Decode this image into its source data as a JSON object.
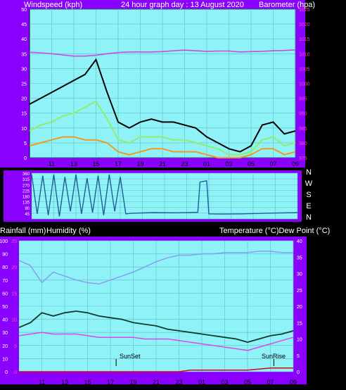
{
  "colors": {
    "frame": "#8a00ff",
    "plot_bg": "#8ef2f7",
    "grid": "#5fbfc4",
    "axis_text": "#ffffff",
    "right_axis_text": "#ff44cc",
    "gust": "#000000",
    "avg_wind": "#8fef6a",
    "wind_min": "#f39a1f",
    "barometer": "#d048e6",
    "direction": "#1f5f9a",
    "humidity": "#8a9cf0",
    "temperature": "#0f3b2e",
    "dewpoint": "#d84be8",
    "rainfall": "#e00000"
  },
  "chart_data": [
    {
      "id": "wind_baro",
      "type": "line",
      "title": "24 hour graph day : 13 August 2020",
      "left_axis_label": "Windspeed (kph)",
      "right_axis_label": "Barometer (hpa)",
      "x_ticks": [
        "11",
        "13",
        "15",
        "17",
        "19",
        "21",
        "23",
        "01",
        "03",
        "05",
        "07",
        "09"
      ],
      "left_ticks": [
        0,
        5,
        10,
        15,
        20,
        25,
        30,
        35,
        40,
        45,
        50
      ],
      "right_ticks": [
        975,
        980,
        985,
        990,
        995,
        1000,
        1005,
        1010,
        1015,
        1020,
        1025
      ],
      "ylim_left": [
        0,
        50
      ],
      "ylim_right": [
        975,
        1025
      ],
      "x_hours": [
        9,
        10,
        11,
        12,
        13,
        14,
        15,
        16,
        17,
        18,
        19,
        20,
        21,
        22,
        23,
        24,
        25,
        26,
        27,
        28,
        29,
        30,
        31,
        32,
        33
      ],
      "series": [
        {
          "key": "gust",
          "values": [
            18,
            20,
            22,
            24,
            26,
            28,
            33,
            22,
            12,
            10,
            12,
            13,
            12,
            12,
            11,
            10,
            7,
            5,
            3,
            2,
            4,
            11,
            12,
            8,
            9
          ]
        },
        {
          "key": "avg",
          "values": [
            9,
            11,
            12,
            14,
            15,
            17,
            19,
            13,
            6,
            5,
            7,
            7,
            7,
            6,
            6,
            5,
            4,
            3,
            1,
            1,
            2,
            6,
            7,
            4,
            5
          ]
        },
        {
          "key": "min",
          "values": [
            4,
            5,
            6,
            7,
            7,
            6,
            6,
            5,
            2,
            1,
            2,
            3,
            3,
            2,
            2,
            2,
            1,
            0,
            0,
            0,
            1,
            3,
            3,
            1,
            2
          ]
        },
        {
          "key": "barometer",
          "values": [
            1010.5,
            1010.3,
            1010.0,
            1009.6,
            1009.2,
            1009.2,
            1009.5,
            1010.0,
            1010.4,
            1010.6,
            1010.6,
            1010.6,
            1010.7,
            1011.0,
            1011.2,
            1011.0,
            1010.8,
            1010.9,
            1010.9,
            1010.6,
            1010.7,
            1010.8,
            1011.0,
            1011.1,
            1011.3
          ]
        }
      ]
    },
    {
      "id": "direction",
      "type": "line",
      "y_ticks": [
        0,
        45,
        90,
        135,
        180,
        225,
        270,
        315,
        360
      ],
      "dir_labels": [
        "N",
        "W",
        "S",
        "E",
        "N"
      ],
      "ylim": [
        0,
        360
      ],
      "x_hours": [
        9,
        9.5,
        10,
        10.5,
        11,
        11.5,
        12,
        12.5,
        13,
        13.5,
        14,
        14.5,
        15,
        15.5,
        16,
        16.5,
        17,
        17.5,
        18,
        20,
        22,
        24,
        24.2,
        24.8,
        25,
        26,
        28,
        30,
        32,
        33
      ],
      "values": [
        350,
        40,
        340,
        30,
        350,
        20,
        330,
        60,
        350,
        40,
        320,
        50,
        340,
        30,
        350,
        60,
        330,
        40,
        45,
        50,
        48,
        52,
        290,
        300,
        40,
        38,
        40,
        45,
        48,
        50
      ]
    },
    {
      "id": "temp_hum_rain",
      "type": "line",
      "left_axis_label": "Rainfall (mm)",
      "left_axis_label2": "Humidity (%)",
      "right_axis_label": "Temperature (°C)Dew Point (°C)",
      "x_ticks": [
        "11",
        "13",
        "15",
        "17",
        "19",
        "21",
        "23",
        "01",
        "03",
        "05",
        "07",
        "09"
      ],
      "humidity_ticks": [
        0,
        10,
        20,
        30,
        40,
        50,
        60,
        70,
        80,
        90,
        100
      ],
      "rain_ticks": [
        0,
        5,
        10,
        15,
        20,
        25
      ],
      "right_ticks": [
        0,
        5,
        10,
        15,
        20,
        25,
        30,
        35,
        40
      ],
      "ylim_left": [
        0,
        100
      ],
      "ylim_right": [
        0,
        40
      ],
      "annotations": {
        "sunset": "SunSet",
        "sunrise": "SunRise"
      },
      "x_hours": [
        9,
        10,
        11,
        12,
        13,
        14,
        15,
        16,
        17,
        18,
        19,
        20,
        21,
        22,
        23,
        24,
        25,
        26,
        27,
        28,
        29,
        30,
        31,
        32,
        33
      ],
      "series": [
        {
          "key": "humidity",
          "values": [
            85,
            81,
            68,
            76,
            73,
            70,
            68,
            67,
            70,
            73,
            76,
            80,
            84,
            87,
            89,
            89,
            90,
            90,
            91,
            91,
            91,
            92,
            92,
            91,
            91
          ]
        },
        {
          "key": "temperature",
          "values": [
            13.5,
            15,
            18,
            17,
            18,
            18.5,
            18,
            17,
            16.5,
            16,
            15,
            14.5,
            14,
            13,
            12.5,
            12,
            11.5,
            11,
            10.5,
            10,
            9,
            10,
            11,
            11.5,
            12.5
          ]
        },
        {
          "key": "dewpoint",
          "values": [
            11,
            11.5,
            12,
            11.5,
            11.5,
            11.5,
            11,
            10.5,
            10.5,
            10.5,
            10.5,
            10,
            10,
            10,
            9.5,
            9,
            8.5,
            8,
            7.5,
            7,
            6.5,
            7.5,
            8.5,
            9.5,
            10.5
          ]
        },
        {
          "key": "rainfall",
          "values": [
            0,
            0,
            0,
            0,
            0,
            0,
            0,
            0,
            0,
            0,
            0,
            0,
            0,
            0,
            0,
            0.3,
            0.3,
            0.3,
            0.3,
            0.3,
            0.3,
            0.5,
            0.7,
            0.7,
            0.7
          ]
        }
      ]
    }
  ]
}
